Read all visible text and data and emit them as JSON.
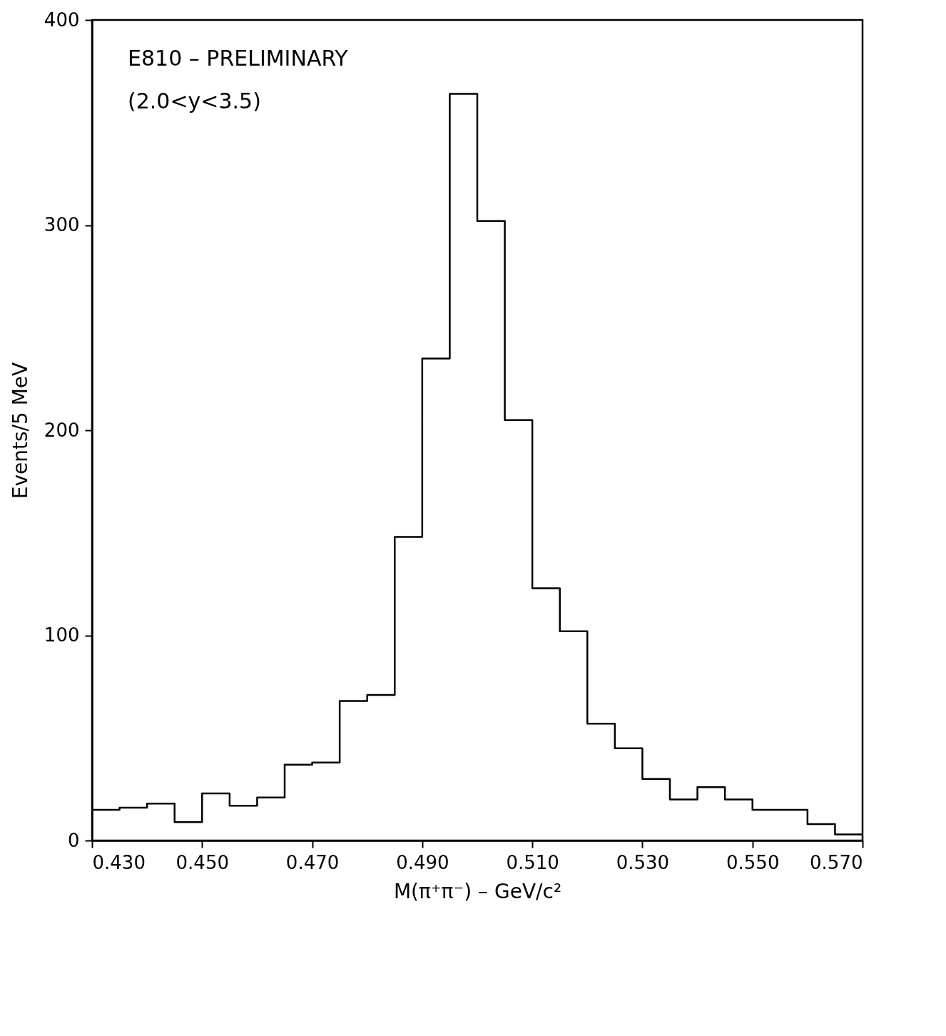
{
  "chart_data": {
    "type": "histogram",
    "title": "E810 – PRELIMINARY",
    "annotations": [
      "(2.0<y<3.5)"
    ],
    "xlabel": "M(π⁺π⁻) – GeV/c²",
    "ylabel": "Events/5 MeV",
    "bins": [
      0.43,
      0.435,
      0.44,
      0.445,
      0.45,
      0.455,
      0.46,
      0.465,
      0.47,
      0.475,
      0.48,
      0.485,
      0.49,
      0.495,
      0.5,
      0.505,
      0.51,
      0.515,
      0.52,
      0.525,
      0.53,
      0.535,
      0.54,
      0.545,
      0.55,
      0.555,
      0.56,
      0.565,
      0.57
    ],
    "values": [
      15,
      16,
      18,
      9,
      23,
      17,
      21,
      37,
      38,
      68,
      71,
      148,
      235,
      364,
      302,
      205,
      123,
      102,
      57,
      45,
      30,
      20,
      26,
      20,
      15,
      15,
      8,
      3
    ],
    "color": "#000000",
    "xlim": [
      0.43,
      0.57
    ],
    "xticks": [
      {
        "value": 0.43,
        "label": "0.430"
      },
      {
        "value": 0.45,
        "label": "0.450"
      },
      {
        "value": 0.47,
        "label": "0.470"
      },
      {
        "value": 0.49,
        "label": "0.490"
      },
      {
        "value": 0.51,
        "label": "0.510"
      },
      {
        "value": 0.53,
        "label": "0.530"
      },
      {
        "value": 0.55,
        "label": "0.550"
      },
      {
        "value": 0.57,
        "label": "0.570"
      }
    ],
    "ylim": [
      0,
      400
    ],
    "yticks": [
      0,
      100,
      200,
      300,
      400
    ],
    "grid": false
  }
}
